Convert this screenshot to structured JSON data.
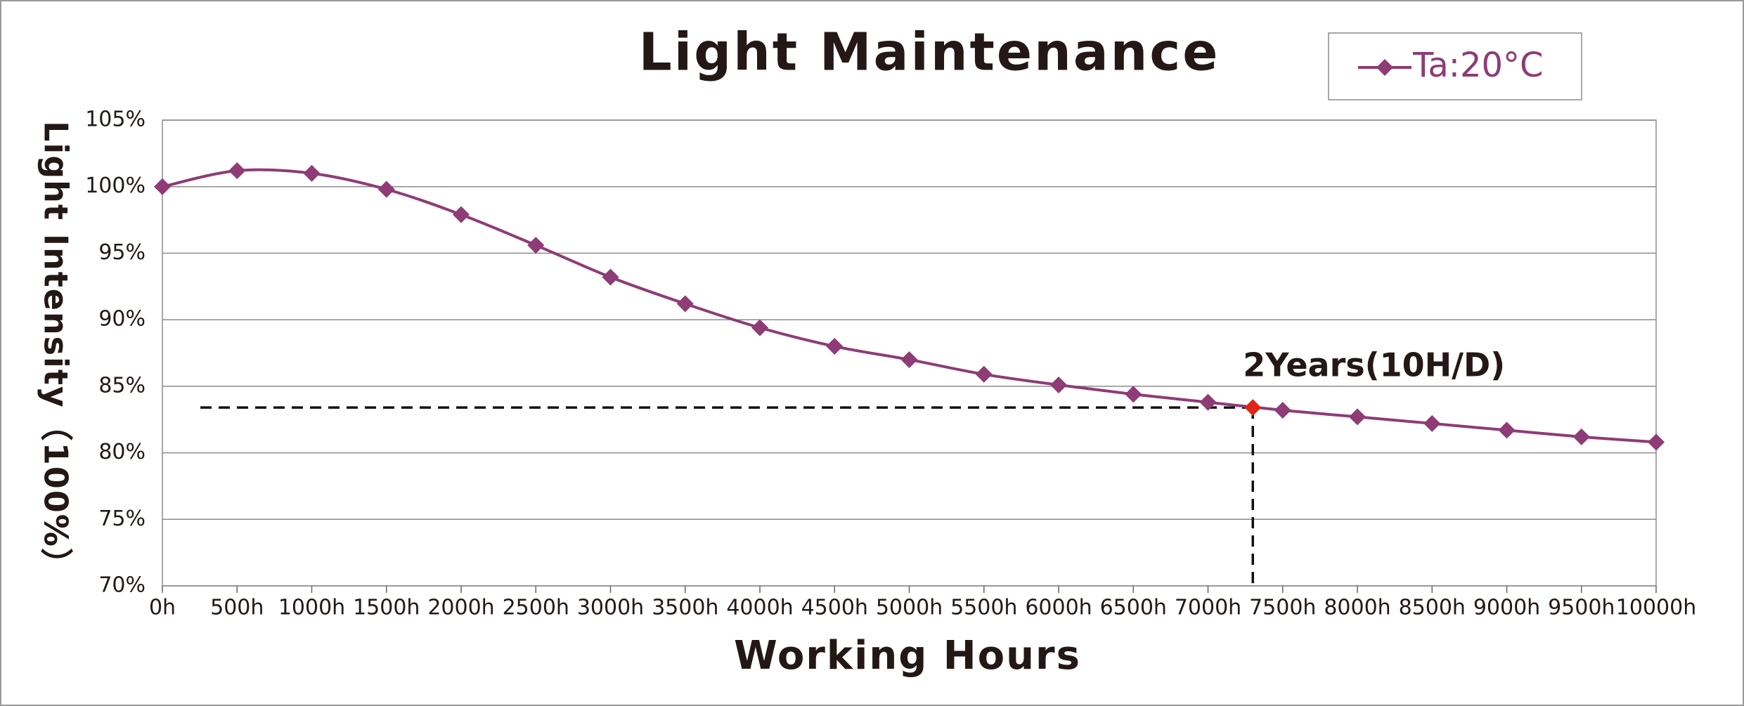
{
  "chart_data": {
    "type": "line",
    "title": "Light Maintenance",
    "x_label": "Working Hours",
    "y_label": "Light Intensity（100%）",
    "x": [
      0,
      500,
      1000,
      1500,
      2000,
      2500,
      3000,
      3500,
      4000,
      4500,
      5000,
      5500,
      6000,
      6500,
      7000,
      7500,
      8000,
      8500,
      9000,
      9500,
      10000
    ],
    "series": [
      {
        "name": "Ta:20°C",
        "color": "#8e3b76",
        "values": [
          100,
          101.2,
          101.0,
          99.8,
          97.9,
          95.6,
          93.2,
          91.2,
          89.4,
          88.0,
          87.0,
          85.9,
          85.1,
          84.4,
          83.8,
          83.2,
          82.7,
          82.2,
          81.7,
          81.2,
          80.8
        ]
      }
    ],
    "highlight": {
      "x": 7300,
      "y": 83.4,
      "label": "2Years(10H/D)",
      "color": "#e02418"
    },
    "xlim": [
      0,
      10000
    ],
    "xticks": [
      {
        "value": 0,
        "label": "0h"
      },
      {
        "value": 500,
        "label": "500h"
      },
      {
        "value": 1000,
        "label": "1000h"
      },
      {
        "value": 1500,
        "label": "1500h"
      },
      {
        "value": 2000,
        "label": "2000h"
      },
      {
        "value": 2500,
        "label": "2500h"
      },
      {
        "value": 3000,
        "label": "3000h"
      },
      {
        "value": 3500,
        "label": "3500h"
      },
      {
        "value": 4000,
        "label": "4000h"
      },
      {
        "value": 4500,
        "label": "4500h"
      },
      {
        "value": 5000,
        "label": "5000h"
      },
      {
        "value": 5500,
        "label": "5500h"
      },
      {
        "value": 6000,
        "label": "6000h"
      },
      {
        "value": 6500,
        "label": "6500h"
      },
      {
        "value": 7000,
        "label": "7000h"
      },
      {
        "value": 7500,
        "label": "7500h"
      },
      {
        "value": 8000,
        "label": "8000h"
      },
      {
        "value": 8500,
        "label": "8500h"
      },
      {
        "value": 9000,
        "label": "9000h"
      },
      {
        "value": 9500,
        "label": "9500h"
      },
      {
        "value": 10000,
        "label": "10000h"
      }
    ],
    "ylim": [
      70,
      105
    ],
    "yticks": [
      {
        "value": 70,
        "label": "70%"
      },
      {
        "value": 75,
        "label": "75%"
      },
      {
        "value": 80,
        "label": "80%"
      },
      {
        "value": 85,
        "label": "85%"
      },
      {
        "value": 90,
        "label": "90%"
      },
      {
        "value": 95,
        "label": "95%"
      },
      {
        "value": 100,
        "label": "100%"
      },
      {
        "value": 105,
        "label": "105%"
      }
    ],
    "grid": true,
    "legend": "top-right"
  }
}
